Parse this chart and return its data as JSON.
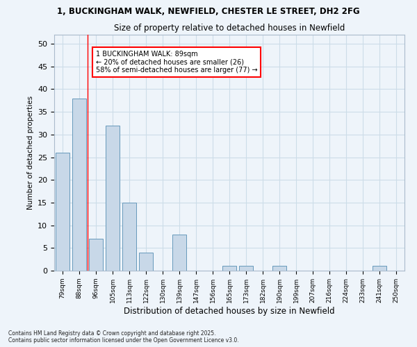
{
  "title1": "1, BUCKINGHAM WALK, NEWFIELD, CHESTER LE STREET, DH2 2FG",
  "title2": "Size of property relative to detached houses in Newfield",
  "xlabel": "Distribution of detached houses by size in Newfield",
  "ylabel": "Number of detached properties",
  "categories": [
    "79sqm",
    "88sqm",
    "96sqm",
    "105sqm",
    "113sqm",
    "122sqm",
    "130sqm",
    "139sqm",
    "147sqm",
    "156sqm",
    "165sqm",
    "173sqm",
    "182sqm",
    "190sqm",
    "199sqm",
    "207sqm",
    "216sqm",
    "224sqm",
    "233sqm",
    "241sqm",
    "250sqm"
  ],
  "values": [
    26,
    38,
    7,
    32,
    15,
    4,
    0,
    8,
    0,
    0,
    1,
    1,
    0,
    1,
    0,
    0,
    0,
    0,
    0,
    1,
    0
  ],
  "bar_color": "#c8d8e8",
  "bar_edge_color": "#6699bb",
  "grid_color": "#ccdde8",
  "background_color": "#eef4fa",
  "vline_color": "red",
  "vline_x": 1.5,
  "annotation_text": "1 BUCKINGHAM WALK: 89sqm\n← 20% of detached houses are smaller (26)\n58% of semi-detached houses are larger (77) →",
  "annotation_box_color": "white",
  "annotation_box_edge": "red",
  "footer": "Contains HM Land Registry data © Crown copyright and database right 2025.\nContains public sector information licensed under the Open Government Licence v3.0.",
  "ylim": [
    0,
    52
  ],
  "yticks": [
    0,
    5,
    10,
    15,
    20,
    25,
    30,
    35,
    40,
    45,
    50
  ]
}
